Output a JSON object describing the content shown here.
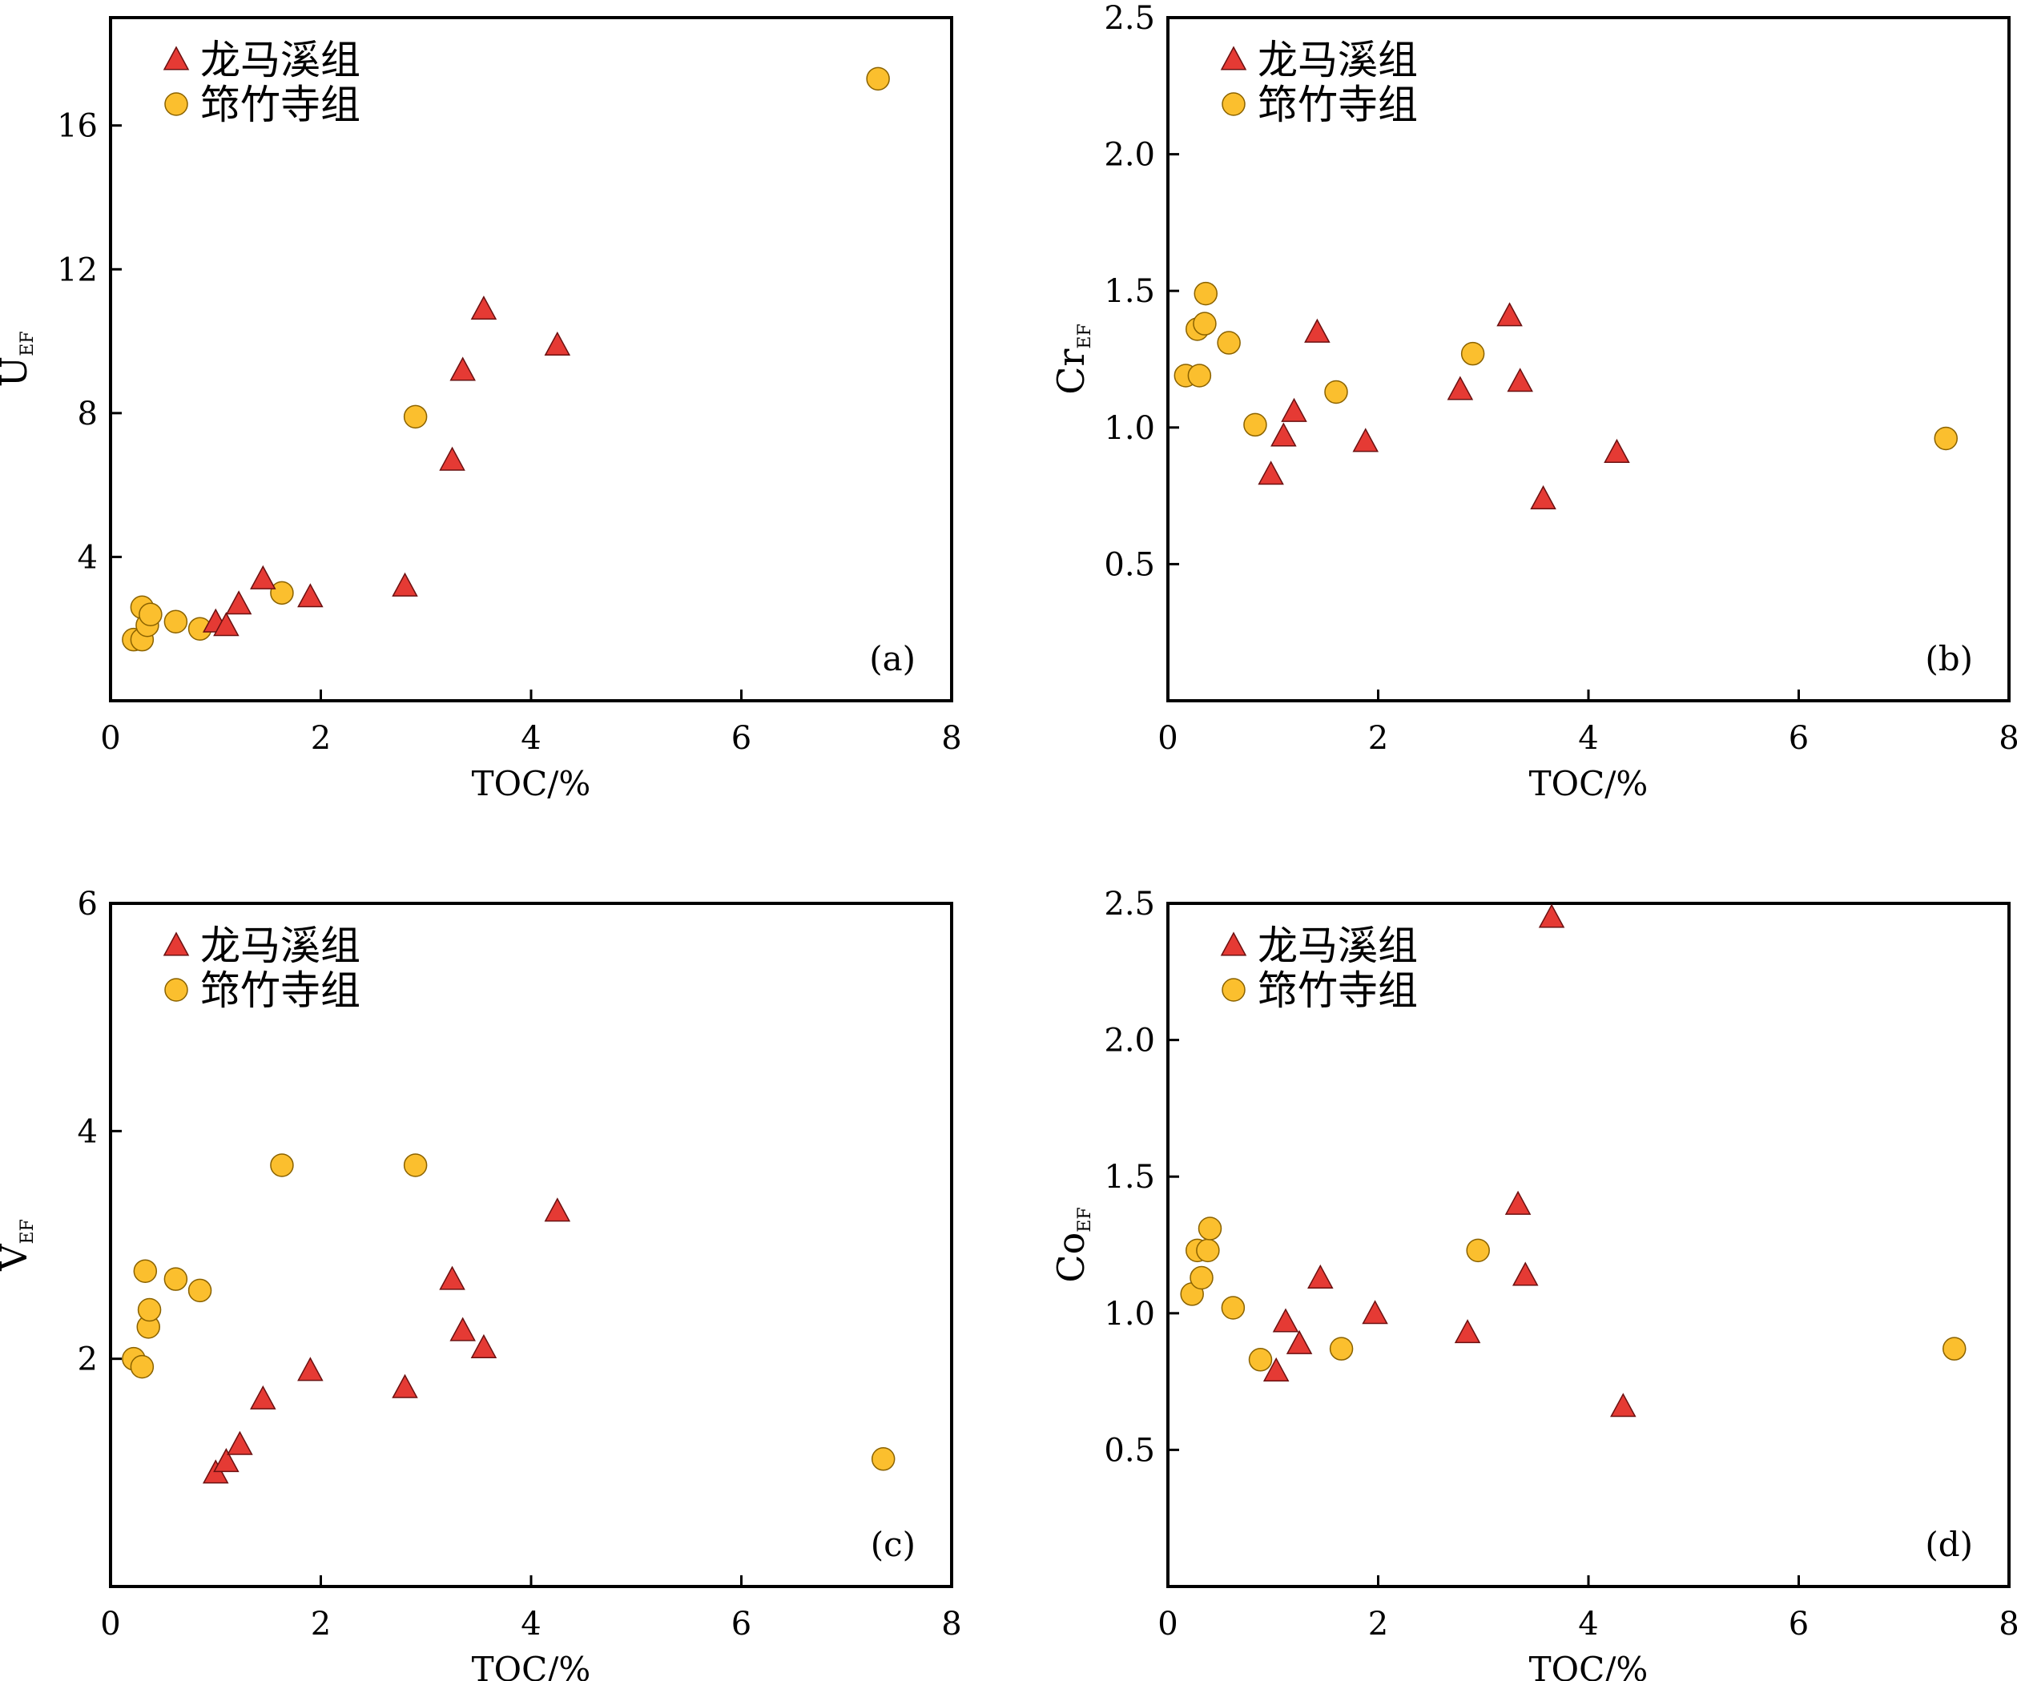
{
  "colors": {
    "longmaxi_fill": "#e53a34",
    "longmaxi_stroke": "#6a1010",
    "qiongzhusi_fill": "#fbbf2e",
    "qiongzhusi_stroke": "#8a6200",
    "axis": "#000000"
  },
  "chart_data": [
    {
      "type": "scatter",
      "panel": "(a)",
      "xlabel": "TOC/%",
      "ylabel_main": "U",
      "ylabel_sub": "EF",
      "xlim": [
        0,
        8
      ],
      "ylim": [
        0,
        19
      ],
      "xticks": [
        0,
        2,
        4,
        6,
        8
      ],
      "yticks": [
        4,
        8,
        12,
        16
      ],
      "tick_decimals": 0,
      "legend_position": "top-left",
      "series": [
        {
          "name": "龙马溪组",
          "marker": "triangle",
          "x": [
            1.0,
            1.1,
            1.22,
            1.45,
            1.9,
            2.8,
            3.25,
            3.35,
            3.55,
            4.25
          ],
          "y": [
            2.2,
            2.1,
            2.7,
            3.4,
            2.9,
            3.2,
            6.7,
            9.2,
            10.9,
            9.9
          ]
        },
        {
          "name": "筇竹寺组",
          "marker": "circle",
          "x": [
            0.22,
            0.3,
            0.3,
            0.35,
            0.38,
            0.62,
            0.85,
            1.63,
            2.9,
            7.3
          ],
          "y": [
            1.7,
            1.7,
            2.6,
            2.1,
            2.4,
            2.2,
            2.0,
            3.0,
            7.9,
            17.3
          ]
        }
      ]
    },
    {
      "type": "scatter",
      "panel": "(b)",
      "xlabel": "TOC/%",
      "ylabel_main": "Cr",
      "ylabel_sub": "EF",
      "xlim": [
        0,
        8
      ],
      "ylim": [
        0,
        2.5
      ],
      "xticks": [
        0,
        2,
        4,
        6,
        8
      ],
      "yticks": [
        0.5,
        1.0,
        1.5,
        2.0,
        2.5
      ],
      "tick_decimals": 1,
      "legend_position": "top-left",
      "series": [
        {
          "name": "龙马溪组",
          "marker": "triangle",
          "x": [
            0.98,
            1.1,
            1.2,
            1.42,
            1.88,
            2.78,
            3.25,
            3.35,
            3.57,
            4.27
          ],
          "y": [
            0.83,
            0.97,
            1.06,
            1.35,
            0.95,
            1.14,
            1.41,
            1.17,
            0.74,
            0.91
          ]
        },
        {
          "name": "筇竹寺组",
          "marker": "circle",
          "x": [
            0.17,
            0.28,
            0.3,
            0.35,
            0.36,
            0.58,
            0.83,
            1.6,
            2.9,
            7.4
          ],
          "y": [
            1.19,
            1.36,
            1.19,
            1.38,
            1.49,
            1.31,
            1.01,
            1.13,
            1.27,
            0.96
          ]
        }
      ]
    },
    {
      "type": "scatter",
      "panel": "(c)",
      "xlabel": "TOC/%",
      "ylabel_main": "V",
      "ylabel_sub": "EF",
      "xlim": [
        0,
        8
      ],
      "ylim": [
        0,
        6
      ],
      "xticks": [
        0,
        2,
        4,
        6,
        8
      ],
      "yticks": [
        2,
        4,
        6
      ],
      "tick_decimals": 0,
      "legend_position": "top-left",
      "series": [
        {
          "name": "龙马溪组",
          "marker": "triangle",
          "x": [
            1.0,
            1.1,
            1.23,
            1.45,
            1.9,
            2.8,
            3.25,
            3.35,
            3.55,
            4.25
          ],
          "y": [
            1.0,
            1.1,
            1.25,
            1.65,
            1.9,
            1.75,
            2.7,
            2.25,
            2.1,
            3.3
          ]
        },
        {
          "name": "筇竹寺组",
          "marker": "circle",
          "x": [
            0.22,
            0.3,
            0.33,
            0.36,
            0.37,
            0.62,
            0.85,
            1.63,
            2.9,
            7.35
          ],
          "y": [
            2.0,
            1.93,
            2.77,
            2.28,
            2.43,
            2.7,
            2.6,
            3.7,
            3.7,
            1.12
          ]
        }
      ]
    },
    {
      "type": "scatter",
      "panel": "(d)",
      "xlabel": "TOC/%",
      "ylabel_main": "Co",
      "ylabel_sub": "EF",
      "xlim": [
        0,
        8
      ],
      "ylim": [
        0,
        2.5
      ],
      "xticks": [
        0,
        2,
        4,
        6,
        8
      ],
      "yticks": [
        0.5,
        1.0,
        1.5,
        2.0,
        2.5
      ],
      "tick_decimals": 1,
      "legend_position": "top-left",
      "series": [
        {
          "name": "龙马溪组",
          "marker": "triangle",
          "x": [
            1.03,
            1.12,
            1.25,
            1.45,
            1.97,
            2.85,
            3.33,
            3.4,
            3.65,
            4.33
          ],
          "y": [
            0.79,
            0.97,
            0.89,
            1.13,
            1.0,
            0.93,
            1.4,
            1.14,
            2.45,
            0.66
          ]
        },
        {
          "name": "筇竹寺组",
          "marker": "circle",
          "x": [
            0.23,
            0.28,
            0.32,
            0.38,
            0.4,
            0.62,
            0.88,
            1.65,
            2.95,
            7.48
          ],
          "y": [
            1.07,
            1.23,
            1.13,
            1.23,
            1.31,
            1.02,
            0.83,
            0.87,
            1.23,
            0.87
          ]
        }
      ]
    }
  ]
}
